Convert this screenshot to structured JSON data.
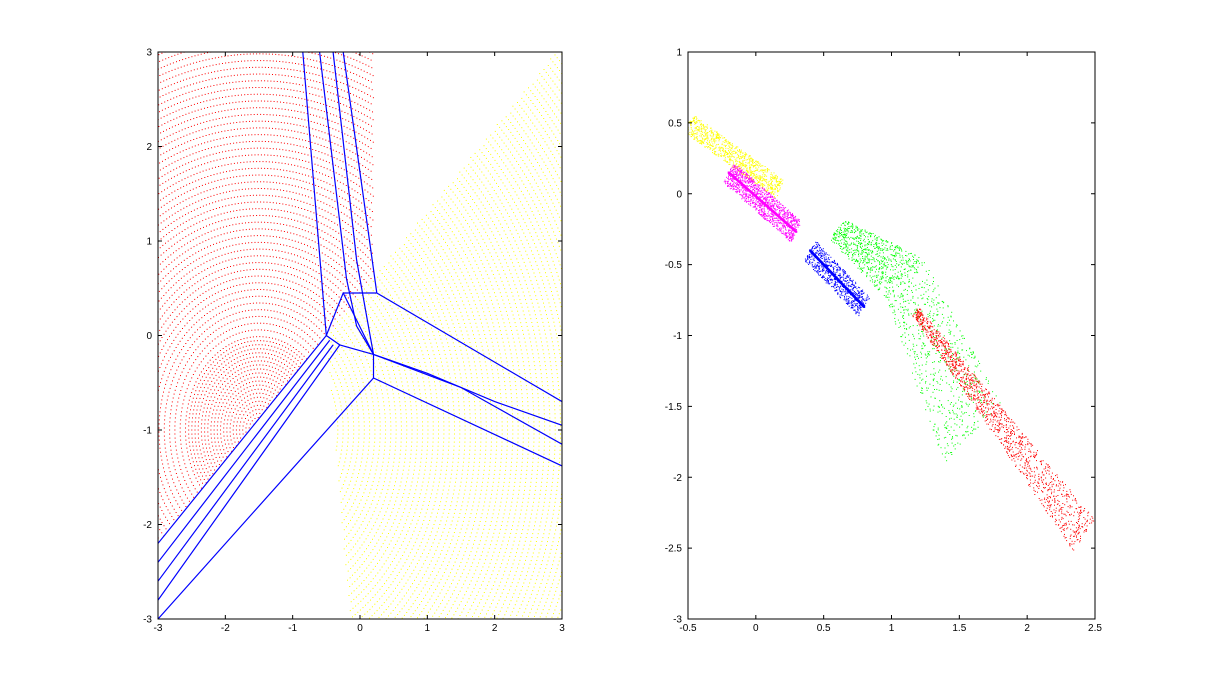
{
  "chart_data": [
    {
      "type": "scatter",
      "title": "",
      "xlabel": "",
      "ylabel": "",
      "xlim": [
        -3,
        3
      ],
      "ylim": [
        -3,
        3
      ],
      "xticks": [
        -3,
        -2,
        -1,
        0,
        1,
        2,
        3
      ],
      "yticks": [
        -3,
        -2,
        -1,
        0,
        1,
        2,
        3
      ],
      "xtick_labels": [
        "-3",
        "-2",
        "-1",
        "0",
        "1",
        "2",
        "3"
      ],
      "ytick_labels": [
        "-3",
        "-2",
        "-1",
        "0",
        "1",
        "2",
        "3"
      ],
      "grid": false,
      "legend": "none",
      "colors": {
        "yellow": "#ffff00",
        "magenta": "#ff00ff",
        "green": "#00ff00",
        "red": "#ff0000",
        "blue": "#0000ff"
      },
      "series": [
        {
          "color": "yellow",
          "region": "upper-left",
          "center": [
            -1.5,
            -1.0
          ]
        },
        {
          "color": "magenta",
          "region": "near center",
          "center": [
            -1.5,
            -1.0
          ]
        },
        {
          "color": "green",
          "region": "middle strip",
          "center": [
            -1.5,
            -1.0
          ]
        },
        {
          "color": "red",
          "region": "lower-right",
          "center": [
            -1.5,
            -1.0
          ]
        },
        {
          "color": "blue",
          "role": "boundary lines",
          "lines": [
            [
              [
                -0.85,
                3.0
              ],
              [
                -0.5,
                0.0
              ]
            ],
            [
              [
                -0.6,
                3.0
              ],
              [
                -0.2,
                0.6
              ],
              [
                -0.05,
                0.1
              ],
              [
                0.2,
                -0.2
              ]
            ],
            [
              [
                -0.4,
                3.0
              ],
              [
                -0.05,
                0.8
              ],
              [
                0.1,
                0.2
              ],
              [
                0.2,
                -0.2
              ]
            ],
            [
              [
                -0.25,
                3.0
              ],
              [
                0.25,
                0.45
              ]
            ],
            [
              [
                0.25,
                0.45
              ],
              [
                3.0,
                -0.7
              ]
            ],
            [
              [
                0.2,
                -0.2
              ],
              [
                1.0,
                -0.4
              ],
              [
                2.0,
                -0.7
              ],
              [
                3.0,
                -0.95
              ]
            ],
            [
              [
                0.2,
                -0.2
              ],
              [
                1.5,
                -0.55
              ],
              [
                3.0,
                -1.15
              ]
            ],
            [
              [
                0.2,
                -0.45
              ],
              [
                3.0,
                -1.38
              ]
            ],
            [
              [
                -0.5,
                0.0
              ],
              [
                -3.0,
                -2.2
              ]
            ],
            [
              [
                -0.45,
                -0.05
              ],
              [
                -3.0,
                -2.4
              ]
            ],
            [
              [
                -0.4,
                -0.1
              ],
              [
                -3.0,
                -2.6
              ]
            ],
            [
              [
                -0.3,
                -0.1
              ],
              [
                -3.0,
                -2.8
              ]
            ],
            [
              [
                0.2,
                -0.45
              ],
              [
                -3.0,
                -3.0
              ]
            ],
            [
              [
                -0.5,
                0.0
              ],
              [
                -0.25,
                0.45
              ],
              [
                0.25,
                0.45
              ]
            ],
            [
              [
                -0.25,
                0.45
              ],
              [
                0.2,
                -0.2
              ]
            ],
            [
              [
                -0.5,
                0.0
              ],
              [
                -0.3,
                -0.1
              ],
              [
                0.2,
                -0.2
              ],
              [
                0.2,
                -0.45
              ]
            ]
          ]
        }
      ]
    },
    {
      "type": "scatter",
      "title": "",
      "xlabel": "",
      "ylabel": "",
      "xlim": [
        -0.5,
        2.5
      ],
      "ylim": [
        -3,
        1
      ],
      "xticks": [
        -0.5,
        0,
        0.5,
        1,
        1.5,
        2,
        2.5
      ],
      "yticks": [
        -3,
        -2.5,
        -2,
        -1.5,
        -1,
        -0.5,
        0,
        0.5,
        1
      ],
      "xtick_labels": [
        "-0.5",
        "0",
        "0.5",
        "1",
        "1.5",
        "2",
        "2.5"
      ],
      "ytick_labels": [
        "-3",
        "-2.5",
        "-2",
        "-1.5",
        "-1",
        "-0.5",
        "0",
        "0.5",
        "1"
      ],
      "grid": false,
      "legend": "none",
      "series": [
        {
          "color": "yellow",
          "x_range": [
            -0.5,
            0.18
          ],
          "y_range": [
            0.05,
            0.55
          ],
          "trend": [
            [
              -0.5,
              0.5
            ],
            [
              0.18,
              0.03
            ]
          ]
        },
        {
          "color": "magenta",
          "x_range": [
            -0.2,
            0.45
          ],
          "y_range": [
            -0.3,
            0.15
          ],
          "trend": [
            [
              -0.2,
              0.15
            ],
            [
              0.3,
              -0.27
            ]
          ]
        },
        {
          "color": "blue",
          "x_range": [
            0.35,
            0.85
          ],
          "y_range": [
            -1.0,
            -0.35
          ],
          "trend": [
            [
              0.4,
              -0.4
            ],
            [
              0.8,
              -0.8
            ]
          ]
        },
        {
          "color": "green",
          "x_range": [
            0.45,
            1.8
          ],
          "y_range": [
            -2.0,
            -0.2
          ],
          "trend": [
            [
              0.6,
              -0.25
            ],
            [
              1.1,
              -0.6
            ],
            [
              1.6,
              -1.7
            ]
          ]
        },
        {
          "color": "red",
          "x_range": [
            1.1,
            2.5
          ],
          "y_range": [
            -2.7,
            -0.75
          ],
          "trend": [
            [
              1.2,
              -0.8
            ],
            [
              2.5,
              -2.3
            ]
          ]
        }
      ]
    }
  ]
}
